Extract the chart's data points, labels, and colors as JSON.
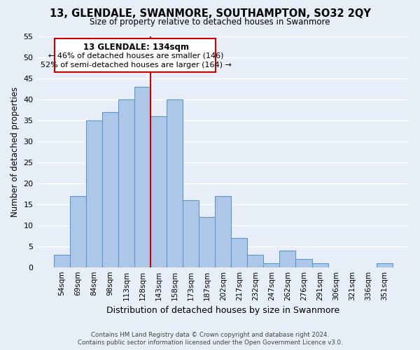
{
  "title": "13, GLENDALE, SWANMORE, SOUTHAMPTON, SO32 2QY",
  "subtitle": "Size of property relative to detached houses in Swanmore",
  "xlabel": "Distribution of detached houses by size in Swanmore",
  "ylabel": "Number of detached properties",
  "bin_labels": [
    "54sqm",
    "69sqm",
    "84sqm",
    "98sqm",
    "113sqm",
    "128sqm",
    "143sqm",
    "158sqm",
    "173sqm",
    "187sqm",
    "202sqm",
    "217sqm",
    "232sqm",
    "247sqm",
    "262sqm",
    "276sqm",
    "291sqm",
    "306sqm",
    "321sqm",
    "336sqm",
    "351sqm"
  ],
  "bar_heights": [
    3,
    17,
    35,
    37,
    40,
    43,
    36,
    40,
    16,
    12,
    17,
    7,
    3,
    1,
    4,
    2,
    1,
    0,
    0,
    0,
    1
  ],
  "bar_color": "#aec6e8",
  "bar_edge_color": "#5a9ac8",
  "vline_x": 5.5,
  "vline_color": "#cc0000",
  "annotation_title": "13 GLENDALE: 134sqm",
  "annotation_line1": "← 46% of detached houses are smaller (146)",
  "annotation_line2": "52% of semi-detached houses are larger (164) →",
  "annotation_box_color": "#ffffff",
  "annotation_border_color": "#cc0000",
  "ylim": [
    0,
    55
  ],
  "yticks": [
    0,
    5,
    10,
    15,
    20,
    25,
    30,
    35,
    40,
    45,
    50,
    55
  ],
  "footer_line1": "Contains HM Land Registry data © Crown copyright and database right 2024.",
  "footer_line2": "Contains public sector information licensed under the Open Government Licence v3.0.",
  "bg_color": "#e8eef8"
}
